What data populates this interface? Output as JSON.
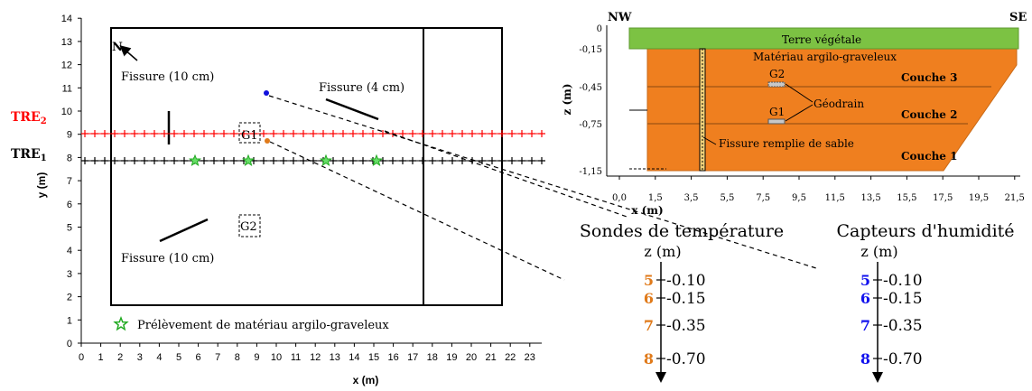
{
  "plan": {
    "x_axis": {
      "label": "x (m)",
      "ticks": [
        "0",
        "1",
        "2",
        "3",
        "4",
        "5",
        "6",
        "7",
        "8",
        "9",
        "10",
        "11",
        "12",
        "13",
        "14",
        "15",
        "16",
        "17",
        "18",
        "19",
        "20",
        "21",
        "22",
        "23"
      ]
    },
    "y_axis": {
      "label": "y (m)",
      "ticks": [
        "0",
        "1",
        "2",
        "3",
        "4",
        "5",
        "6",
        "7",
        "8",
        "9",
        "10",
        "11",
        "12",
        "13",
        "14"
      ]
    },
    "north_label": "N",
    "tre2_label": "TRE",
    "tre2_sub": "2",
    "tre1_label": "TRE",
    "tre1_sub": "1",
    "fissure_top_left": "Fissure (10 cm)",
    "fissure_top_right": "Fissure (4 cm)",
    "fissure_bottom": "Fissure (10 cm)",
    "g1_label": "G1",
    "g2_label": "G2",
    "legend_label": "Prélèvement de matériau argilo-graveleux",
    "colors": {
      "tre2": "#ff0000",
      "tre1": "#000000",
      "sample": "#22aa22",
      "dot_blue": "#1111dd",
      "dot_orange": "#e07a1a"
    }
  },
  "section": {
    "nw": "NW",
    "se": "SE",
    "terre": "Terre végétale",
    "materiau": "Matériau argilo-graveleux",
    "z_label": "z (m)",
    "z_ticks": [
      "0",
      "-0,15",
      "-0,45",
      "-0,75",
      "-1,15"
    ],
    "x_label": "x (m)",
    "x_ticks": [
      "0,0",
      "1,5",
      "3,5",
      "5,5",
      "7,5",
      "9,5",
      "11,5",
      "13,5",
      "15,5",
      "17,5",
      "19,5",
      "21,5"
    ],
    "couche3": "Couche 3",
    "couche2": "Couche 2",
    "couche1": "Couche 1",
    "g2": "G2",
    "g1": "G1",
    "geodrain": "Géodrain",
    "fissure_sable": "Fissure remplie de sable",
    "colors": {
      "green": "#7cc243",
      "orange": "#ef7f1f"
    }
  },
  "sondes": {
    "title": "Sondes de température",
    "z_label": "z (m)",
    "items": [
      {
        "num": "5",
        "depth": "-0.10"
      },
      {
        "num": "6",
        "depth": "-0.15"
      },
      {
        "num": "7",
        "depth": "-0.35"
      },
      {
        "num": "8",
        "depth": "-0.70"
      }
    ],
    "color": "#e07a1a"
  },
  "capteurs": {
    "title": "Capteurs d'humidité",
    "z_label": "z (m)",
    "items": [
      {
        "num": "5",
        "depth": "-0.10"
      },
      {
        "num": "6",
        "depth": "-0.15"
      },
      {
        "num": "7",
        "depth": "-0.35"
      },
      {
        "num": "8",
        "depth": "-0.70"
      }
    ],
    "color": "#1111ee"
  }
}
